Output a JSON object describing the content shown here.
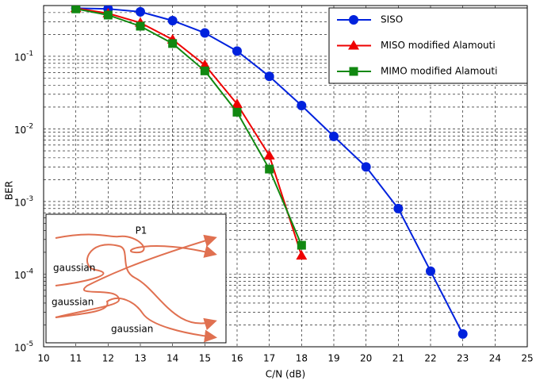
{
  "chart_data": {
    "type": "line",
    "x_label": "C/N (dB)",
    "y_label": "BER",
    "log_y": true,
    "grid": true,
    "legend": "upper right",
    "xlim": [
      10,
      25
    ],
    "xticks": [
      10,
      11,
      12,
      13,
      14,
      15,
      16,
      17,
      18,
      19,
      20,
      21,
      22,
      23,
      24,
      25
    ],
    "ylim": [
      1e-05,
      0.5
    ],
    "yticks": [
      {
        "value": 1e-05,
        "label": "10^-5"
      },
      {
        "value": 0.0001,
        "label": "10^-4"
      },
      {
        "value": 0.001,
        "label": "10^-3"
      },
      {
        "value": 0.01,
        "label": "10^-2"
      },
      {
        "value": 0.1,
        "label": "10^-1"
      }
    ],
    "series": [
      {
        "name": "SISO",
        "color": "#0022dd",
        "marker": "circle",
        "x": [
          11,
          12,
          13,
          14,
          15,
          16,
          17,
          18,
          19,
          20,
          21,
          22,
          23
        ],
        "values": [
          0.46,
          0.45,
          0.41,
          0.31,
          0.21,
          0.118,
          0.053,
          0.021,
          0.0079,
          0.003,
          0.0008,
          0.00011,
          1.5e-05
        ]
      },
      {
        "name": "MISO modified Alamouti",
        "color": "#ee0000",
        "marker": "triangle",
        "x": [
          11,
          12,
          13,
          14,
          15,
          16,
          17,
          18
        ],
        "values": [
          0.46,
          0.39,
          0.29,
          0.17,
          0.076,
          0.022,
          0.0043,
          0.00018
        ]
      },
      {
        "name": "MIMO  modified Alamouti",
        "color": "#118811",
        "marker": "square",
        "x": [
          11,
          12,
          13,
          14,
          15,
          16,
          17,
          18
        ],
        "values": [
          0.45,
          0.37,
          0.26,
          0.15,
          0.063,
          0.017,
          0.0028,
          0.00025
        ]
      }
    ],
    "annotations": [
      "P1",
      "gaussian",
      "gaussian",
      "gaussian"
    ]
  }
}
